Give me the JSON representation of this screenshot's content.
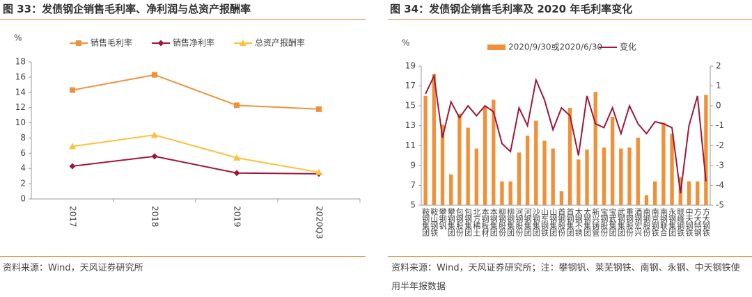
{
  "chart_data": [
    {
      "type": "line",
      "title": "图 33：发债钢企销售毛利率、净利润与总资产报酬率",
      "y_label": "%",
      "categories": [
        "2017",
        "2018",
        "2019",
        "2020Q3"
      ],
      "series": [
        {
          "name": "销售毛利率",
          "color": "#f0913a",
          "marker": "square",
          "values": [
            14.3,
            16.3,
            12.3,
            11.8
          ]
        },
        {
          "name": "销售净利率",
          "color": "#a0163a",
          "marker": "diamond",
          "values": [
            4.3,
            5.6,
            3.4,
            3.3
          ]
        },
        {
          "name": "总资产报酬率",
          "color": "#f9c23c",
          "marker": "triangle",
          "values": [
            6.9,
            8.4,
            5.4,
            3.5
          ]
        }
      ],
      "ylim": [
        0,
        18
      ],
      "yticks": [
        0,
        2,
        4,
        6,
        8,
        10,
        12,
        14,
        16,
        18
      ],
      "source": "资料来源：Wind，天风证券研究所"
    },
    {
      "type": "bar",
      "title": "图 34：发债钢企销售毛利率及 2020 年毛利率变化",
      "y_label": "%",
      "categories": [
        "鞍钢集团",
        "鞍山钢铁",
        "攀钢钒",
        "攀钢集团",
        "包钢股份",
        "包钢集团",
        "北方稀土",
        "本钢板材",
        "本钢集团",
        "柳钢股份",
        "柳钢集团",
        "河钢股份",
        "河钢集团",
        "沙钢集团",
        "山东钢铁",
        "山钢集团",
        "首钢股份",
        "首钢集团",
        "太钢不锈",
        "太钢集团",
        "新兴铸管",
        "宝钢股份",
        "宝武集团",
        "武钢集团",
        "重钢股份",
        "酒钢宏兴",
        "南钢股份",
        "南京钢铁",
        "南钢联合",
        "永钢集团",
        "联峰钢铁",
        "中天钢铁",
        "方大特钢",
        "方大钢铁"
      ],
      "series": [
        {
          "name": "2020/9/30或2020/6/30",
          "color": "#f0913a",
          "type": "bar",
          "values": [
            16.0,
            18.2,
            13.1,
            8.1,
            14.2,
            12.8,
            10.7,
            14.9,
            15.6,
            7.4,
            7.4,
            10.3,
            12.0,
            13.5,
            11.5,
            10.7,
            6.4,
            14.8,
            9.6,
            10.6,
            16.4,
            10.8,
            13.9,
            10.7,
            10.8,
            11.8,
            6.0,
            7.4,
            13.3,
            12.2,
            7.8,
            7.4,
            7.4,
            16.1
          ]
        },
        {
          "name": "变化",
          "color": "#a0163a",
          "type": "line",
          "axis": "y2",
          "values": [
            0.6,
            1.5,
            -1.6,
            0.2,
            -0.6,
            0.0,
            -0.5,
            0.0,
            -0.3,
            -1.9,
            -2.3,
            -0.1,
            -1.0,
            1.3,
            0.3,
            -1.2,
            -0.1,
            -0.5,
            -2.5,
            0.5,
            -0.9,
            -1.1,
            -0.1,
            -1.4,
            0.0,
            -0.9,
            -1.4,
            -0.8,
            -0.9,
            -1.1,
            -4.4,
            -1.0,
            0.5,
            -3.8
          ]
        }
      ],
      "ylim": [
        5,
        19
      ],
      "yticks": [
        5,
        7,
        9,
        11,
        13,
        15,
        17,
        19
      ],
      "y2lim": [
        -5,
        2
      ],
      "y2ticks": [
        -5,
        -4,
        -3,
        -2,
        -1,
        0,
        1,
        2
      ],
      "source": "资料来源：Wind，天风证券研究所；注：攀钢钒、莱芜钢铁、南钢、永钢、中天钢铁使用半年报数据"
    }
  ]
}
